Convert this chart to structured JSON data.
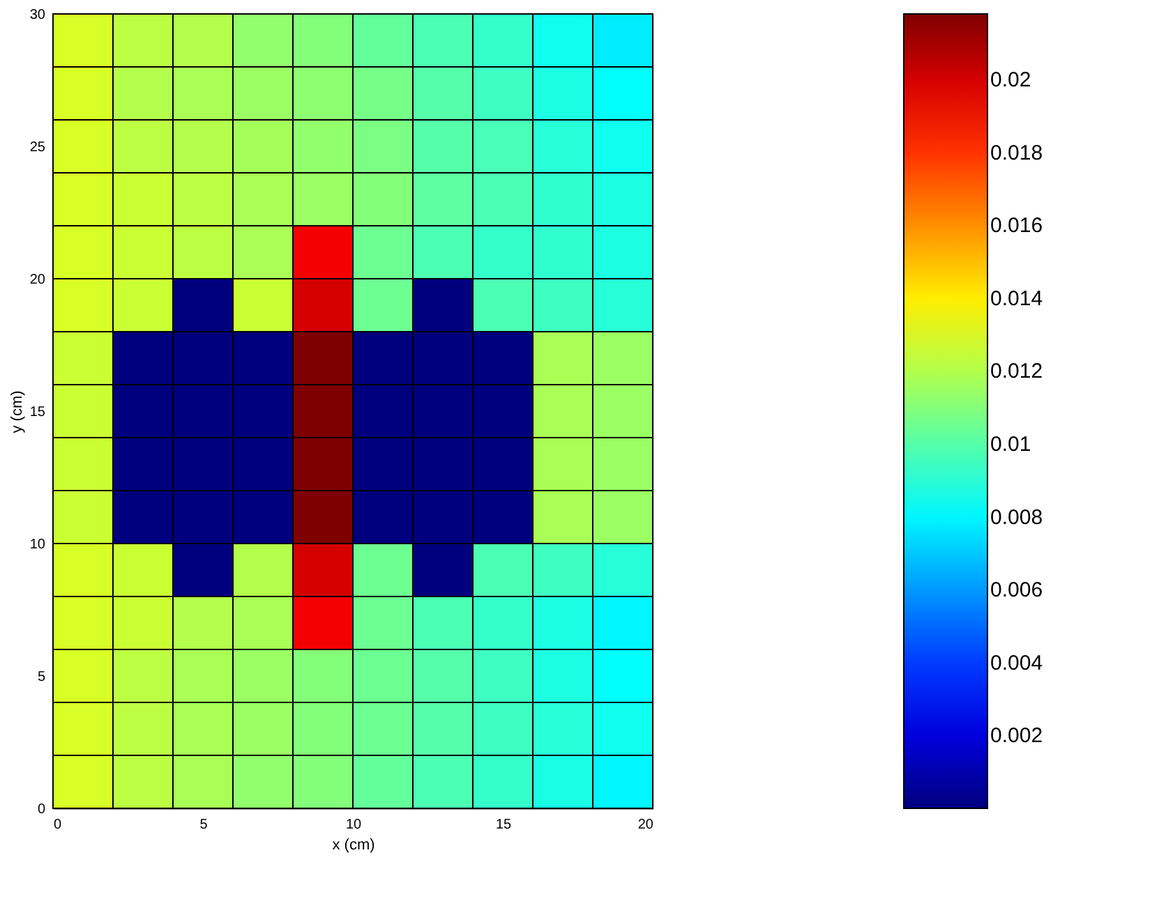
{
  "chart_data": {
    "type": "heatmap",
    "xlabel": "x (cm)",
    "ylabel": "y (cm)",
    "xlim": [
      0,
      20
    ],
    "xticks": [
      0,
      5,
      10,
      15,
      20
    ],
    "ylim": [
      0,
      30
    ],
    "yticks": [
      0,
      5,
      10,
      15,
      20,
      25,
      30
    ],
    "clim": [
      0,
      0.0218
    ],
    "cticks": [
      0.002,
      0.004,
      0.006,
      0.008,
      0.01,
      0.012,
      0.014,
      0.016,
      0.018,
      0.02
    ],
    "cells": [
      [
        0.0128,
        0.0122,
        0.012,
        0.0113,
        0.011,
        0.0103,
        0.0098,
        0.0093,
        0.0085,
        0.0078
      ],
      [
        0.0128,
        0.012,
        0.0118,
        0.0115,
        0.0112,
        0.0107,
        0.01,
        0.0095,
        0.0088,
        0.0082
      ],
      [
        0.0128,
        0.0122,
        0.012,
        0.0117,
        0.0113,
        0.0108,
        0.01,
        0.0097,
        0.009,
        0.0085
      ],
      [
        0.0128,
        0.0125,
        0.0122,
        0.0118,
        0.0115,
        0.011,
        0.0102,
        0.0098,
        0.0092,
        0.0088
      ],
      [
        0.0128,
        0.0125,
        0.0122,
        0.0118,
        0.0193,
        0.0105,
        0.0098,
        0.0093,
        0.0092,
        0.0088
      ],
      [
        0.0128,
        0.0125,
        0.0,
        0.0125,
        0.02,
        0.0105,
        0.0,
        0.0098,
        0.0095,
        0.009
      ],
      [
        0.0125,
        0.0,
        0.0,
        0.0,
        0.0218,
        0.0,
        0.0,
        0.0,
        0.0118,
        0.0115
      ],
      [
        0.0125,
        0.0,
        0.0,
        0.0,
        0.0218,
        0.0,
        0.0,
        0.0,
        0.0118,
        0.0115
      ],
      [
        0.0125,
        0.0,
        0.0,
        0.0,
        0.0218,
        0.0,
        0.0,
        0.0,
        0.0118,
        0.0115
      ],
      [
        0.0125,
        0.0,
        0.0,
        0.0,
        0.0218,
        0.0,
        0.0,
        0.0,
        0.0118,
        0.0115
      ],
      [
        0.0128,
        0.0125,
        0.0,
        0.012,
        0.02,
        0.0105,
        0.0,
        0.0098,
        0.0095,
        0.009
      ],
      [
        0.0128,
        0.0125,
        0.012,
        0.0118,
        0.0193,
        0.0105,
        0.0098,
        0.0093,
        0.0088,
        0.008
      ],
      [
        0.0128,
        0.0122,
        0.0118,
        0.0115,
        0.011,
        0.0105,
        0.01,
        0.0095,
        0.0088,
        0.0082
      ],
      [
        0.0128,
        0.0122,
        0.0118,
        0.0115,
        0.011,
        0.0105,
        0.01,
        0.0095,
        0.009,
        0.0085
      ],
      [
        0.0128,
        0.0122,
        0.0118,
        0.0113,
        0.011,
        0.0103,
        0.0098,
        0.0093,
        0.0087,
        0.008
      ]
    ]
  }
}
